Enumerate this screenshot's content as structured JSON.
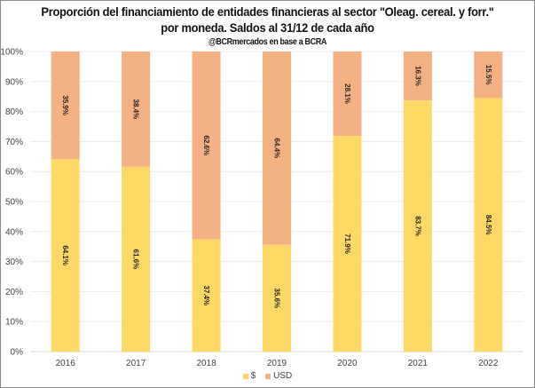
{
  "chart_data": {
    "type": "bar",
    "stacked": true,
    "percent": true,
    "title": "Proporción del financiamiento de entidades financieras al sector \"Oleag. cereal. y forr.\"",
    "subtitle": "por moneda. Saldos al 31/12 de cada año",
    "source": "@BCRmercados en base a BCRA",
    "xlabel": "",
    "ylabel": "",
    "ylim": [
      0,
      100
    ],
    "y_ticks": [
      "0%",
      "10%",
      "20%",
      "30%",
      "40%",
      "50%",
      "60%",
      "70%",
      "80%",
      "90%",
      "100%"
    ],
    "grid": true,
    "legend_position": "bottom",
    "categories": [
      "2016",
      "2017",
      "2018",
      "2019",
      "2020",
      "2021",
      "2022"
    ],
    "series": [
      {
        "name": "$",
        "color": "#FFD966",
        "values": [
          64.1,
          61.6,
          37.4,
          35.6,
          71.9,
          83.7,
          84.5
        ],
        "labels": [
          "64.1%",
          "61.6%",
          "37.4%",
          "35.6%",
          "71.9%",
          "83.7%",
          "84.5%"
        ]
      },
      {
        "name": "USD",
        "color": "#F4B183",
        "values": [
          35.9,
          38.4,
          62.6,
          64.4,
          28.1,
          16.3,
          15.5
        ],
        "labels": [
          "35.9%",
          "38.4%",
          "62.6%",
          "64.4%",
          "28.1%",
          "16.3%",
          "15.5%"
        ]
      }
    ]
  }
}
